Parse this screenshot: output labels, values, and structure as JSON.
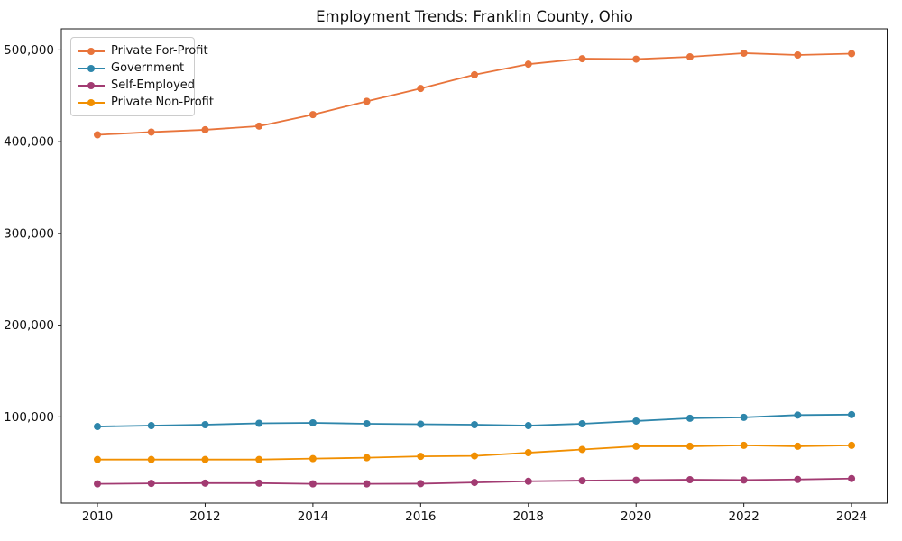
{
  "title": "Employment Trends: Franklin County, Ohio",
  "colors": {
    "private_for_profit": "#E8743B",
    "government": "#2E86AB",
    "self_employed": "#A23B72",
    "private_non_profit": "#F18F01",
    "spine": "#1a1a1a",
    "tick_label": "#111111",
    "background": "#ffffff",
    "legend_border": "#cccccc"
  },
  "chart_data": {
    "type": "line",
    "title": "Employment Trends: Franklin County, Ohio",
    "xlabel": "",
    "ylabel": "",
    "grid": false,
    "legend_position": "upper left",
    "marker": "circle",
    "x": [
      2010,
      2011,
      2012,
      2013,
      2014,
      2015,
      2016,
      2017,
      2018,
      2019,
      2020,
      2021,
      2022,
      2023,
      2024
    ],
    "series": [
      {
        "name": "Private For-Profit",
        "color": "#E8743B",
        "values": [
          407500,
          410500,
          413000,
          417000,
          429500,
          444000,
          458000,
          473000,
          484500,
          490500,
          490000,
          492500,
          496500,
          494500,
          496000
        ]
      },
      {
        "name": "Government",
        "color": "#2E86AB",
        "values": [
          89500,
          90500,
          91500,
          93000,
          93500,
          92500,
          92000,
          91500,
          90500,
          92500,
          95500,
          98500,
          99500,
          102000,
          102500
        ]
      },
      {
        "name": "Self-Employed",
        "color": "#A23B72",
        "values": [
          27000,
          27500,
          27800,
          27800,
          27000,
          27000,
          27200,
          28500,
          29800,
          30500,
          31000,
          31500,
          31200,
          31800,
          32800
        ]
      },
      {
        "name": "Private Non-Profit",
        "color": "#F18F01",
        "values": [
          53500,
          53500,
          53500,
          53500,
          54500,
          55500,
          57000,
          57500,
          61000,
          64500,
          68000,
          68000,
          69000,
          68000,
          69000
        ]
      }
    ],
    "xlim": [
      2009.33,
      2024.66
    ],
    "ylim": [
      6000,
      523000
    ],
    "xticks": [
      2010,
      2012,
      2014,
      2016,
      2018,
      2020,
      2022,
      2024
    ],
    "xtick_labels": [
      "2010",
      "2012",
      "2014",
      "2016",
      "2018",
      "2020",
      "2022",
      "2024"
    ],
    "yticks": [
      100000,
      200000,
      300000,
      400000,
      500000
    ],
    "ytick_labels": [
      "100,000",
      "200,000",
      "300,000",
      "400,000",
      "500,000"
    ]
  }
}
